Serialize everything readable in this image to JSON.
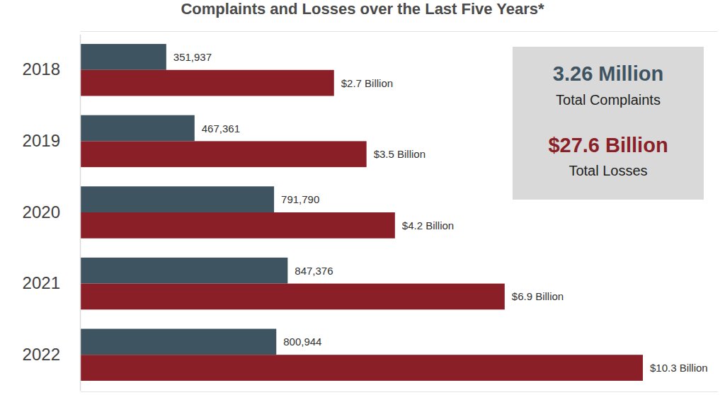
{
  "chart_data": {
    "type": "bar",
    "orientation": "horizontal",
    "title": "Complaints and Losses over the Last Five Years*",
    "categories": [
      "2018",
      "2019",
      "2020",
      "2021",
      "2022"
    ],
    "series": [
      {
        "color": "#3f5461",
        "values": [
          351937,
          467361,
          791790,
          847376,
          800944
        ],
        "value_labels": [
          "351,937",
          "467,361",
          "791,790",
          "847,376",
          "800,944"
        ]
      },
      {
        "color": "#8b1f27",
        "axis": "y2",
        "values": [
          2.7,
          3.5,
          4.2,
          6.9,
          10.3
        ],
        "value_labels": [
          "$2.7 Billion",
          "$3.5 Billion",
          "$4.2 Billion",
          "$6.9 Billion",
          "$10.3 Billion"
        ]
      }
    ],
    "ylim": [
      0,
      2600000
    ],
    "y2lim": [
      -3.55,
      12.13
    ],
    "data_labels": true,
    "tick_labels": "x",
    "annotations": [
      "3.26 Million",
      "Total Complaints",
      "$27.6 Billion",
      "Total Losses"
    ]
  }
}
